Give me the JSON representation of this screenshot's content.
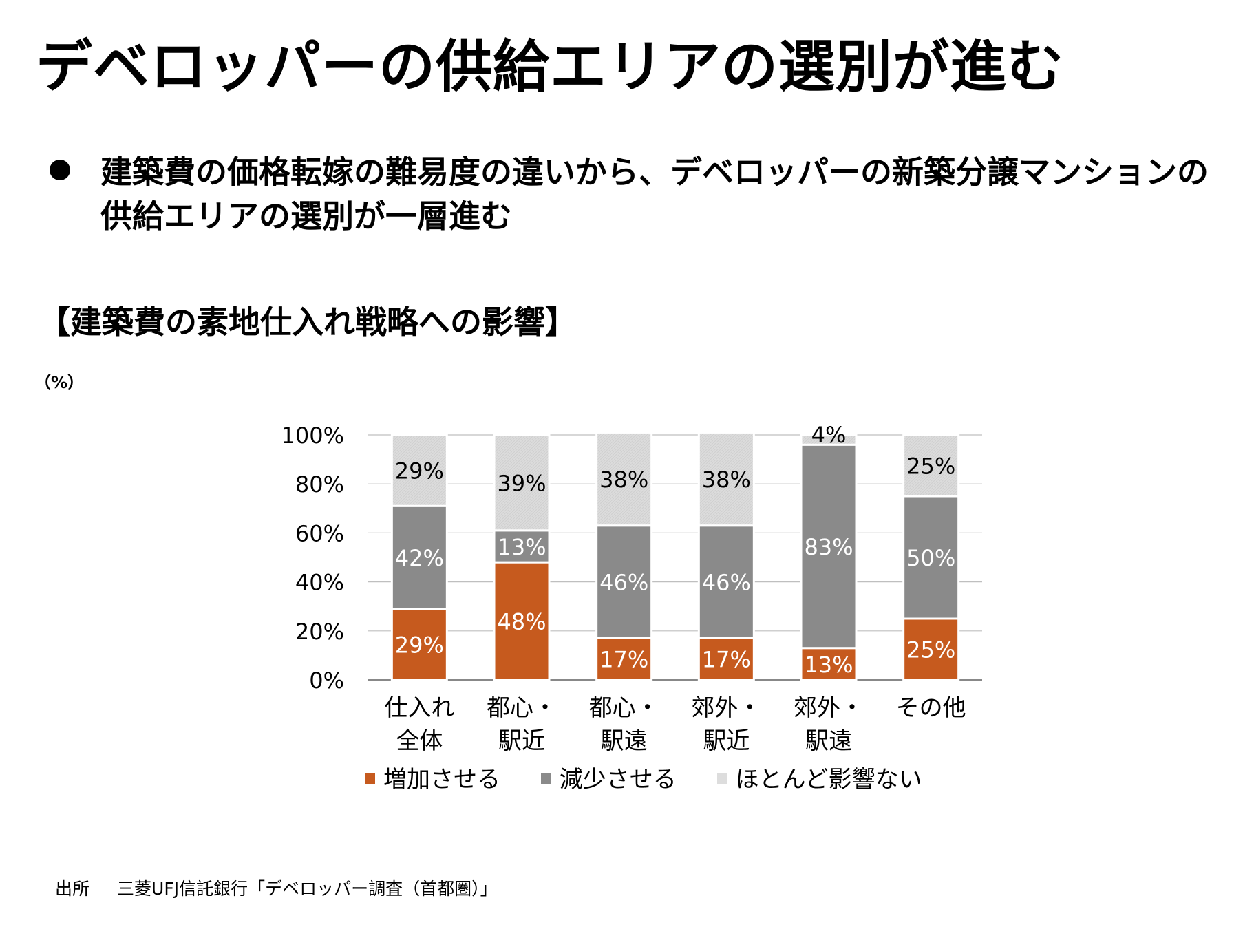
{
  "title": "デベロッパーの供給エリアの選別が進む",
  "bullet": "建築費の価格転嫁の難易度の違いから、デベロッパーの新築分譲マンションの供給エリアの選別が一層進む",
  "chart_title": "【建築費の素地仕入れ戦略への影響】",
  "unit_label": "（%）",
  "source": {
    "label": "出所",
    "text": "三菱UFJ信託銀行「デベロッパー調査（首都圏）」"
  },
  "colors": {
    "increase": "#c65a1e",
    "decrease": "#8a8a8a",
    "no_effect": "#dddddd",
    "grid": "#bfbfbf"
  },
  "chart_data": {
    "type": "bar",
    "stacked": true,
    "categories": [
      [
        "仕入れ",
        "全体"
      ],
      [
        "都心・",
        "駅近"
      ],
      [
        "都心・",
        "駅遠"
      ],
      [
        "郊外・",
        "駅近"
      ],
      [
        "郊外・",
        "駅遠"
      ],
      [
        "その他"
      ]
    ],
    "series": [
      {
        "name": "増加させる",
        "values": [
          29,
          48,
          17,
          17,
          13,
          25
        ]
      },
      {
        "name": "減少させる",
        "values": [
          42,
          13,
          46,
          46,
          83,
          50
        ]
      },
      {
        "name": "ほとんど影響ない",
        "values": [
          29,
          39,
          38,
          38,
          4,
          25
        ]
      }
    ],
    "yticks": [
      "0%",
      "20%",
      "40%",
      "60%",
      "80%",
      "100%"
    ],
    "ylim": [
      0,
      100
    ],
    "grid": true,
    "legend": "bottom"
  }
}
